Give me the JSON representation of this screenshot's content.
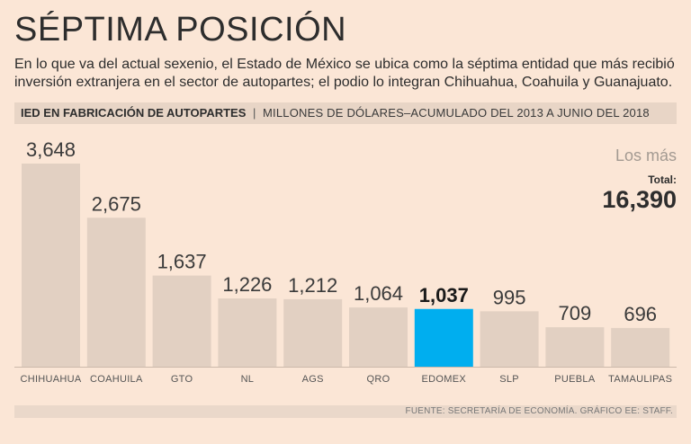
{
  "title": "SÉPTIMA POSICIÓN",
  "subtitle": "En lo que va del actual sexenio, el Estado de México se ubica como la séptima entidad que más recibió inversión extranjera en el sector de autopartes; el podio lo integran Chihuahua, Coahuila y Guanajuato.",
  "band": {
    "title": "IED EN FABRICACIÓN DE AUTOPARTES",
    "separator": "|",
    "subtitle": "MILLONES DE DÓLARES–ACUMULADO DEL 2013 A JUNIO DEL 2018"
  },
  "totals": {
    "heading": "Los más",
    "label": "Total:",
    "value": "16,390"
  },
  "footer": "FUENTE: SECRETARÍA DE ECONOMÍA. GRÁFICO EE: STAFF.",
  "colors": {
    "bar": "#e2d0c2",
    "highlight": "#00aeef",
    "background": "#fbe6d6"
  },
  "chart_data": {
    "type": "bar",
    "title": "IED EN FABRICACIÓN DE AUTOPARTES",
    "ylabel": "Millones de dólares",
    "ylim": [
      0,
      3700
    ],
    "categories": [
      "CHIHUAHUA",
      "COAHUILA",
      "GTO",
      "NL",
      "AGS",
      "QRO",
      "EDOMEX",
      "SLP",
      "PUEBLA",
      "TAMAULIPAS"
    ],
    "values": [
      3648,
      2675,
      1637,
      1226,
      1212,
      1064,
      1037,
      995,
      709,
      696
    ],
    "value_labels": [
      "3,648",
      "2,675",
      "1,637",
      "1,226",
      "1,212",
      "1,064",
      "1,037",
      "995",
      "709",
      "696"
    ],
    "highlight": "EDOMEX",
    "grid": false
  }
}
